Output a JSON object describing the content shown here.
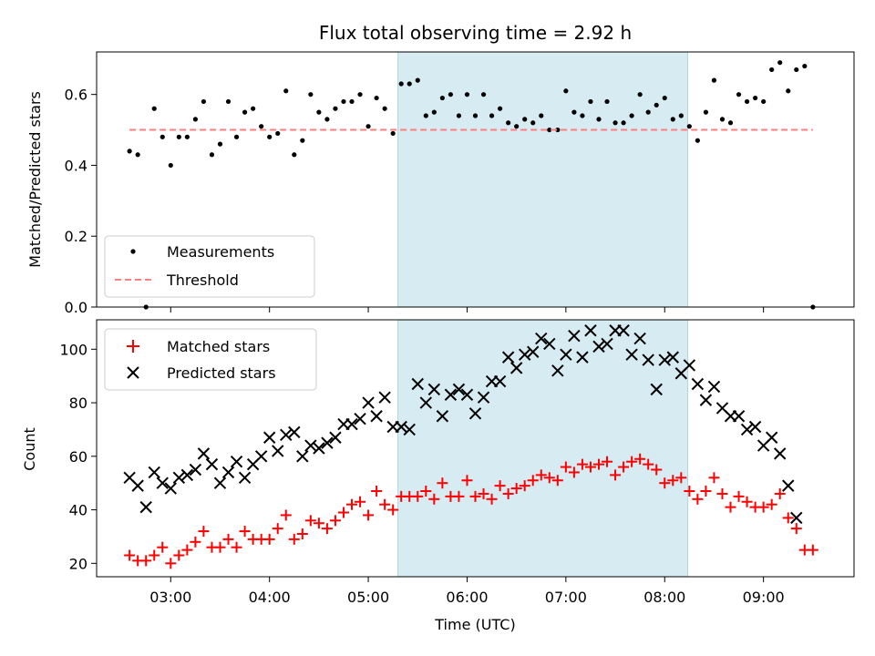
{
  "chart_data": [
    {
      "type": "scatter",
      "title": "Flux total observing time = 2.92 h",
      "ylabel": "Matched/Predicted stars",
      "xlabel": "",
      "xlim": [
        "02:15",
        "09:55"
      ],
      "ylim": [
        0,
        0.72
      ],
      "yticks": [
        "0.0",
        "0.2",
        "0.4",
        "0.6"
      ],
      "ytick_values": [
        0,
        0.2,
        0.4,
        0.6
      ],
      "highlight_span": [
        "05:18",
        "08:14"
      ],
      "legend_position": "lower-left",
      "series": [
        {
          "name": "Measurements",
          "kind": "points",
          "color": "#000000",
          "points": [
            [
              "02:35",
              0.44
            ],
            [
              "02:40",
              0.43
            ],
            [
              "02:45",
              0
            ],
            [
              "02:50",
              0.56
            ],
            [
              "02:55",
              0.48
            ],
            [
              "03:00",
              0.4
            ],
            [
              "03:05",
              0.48
            ],
            [
              "03:10",
              0.48
            ],
            [
              "03:15",
              0.53
            ],
            [
              "03:20",
              0.58
            ],
            [
              "03:25",
              0.43
            ],
            [
              "03:30",
              0.46
            ],
            [
              "03:35",
              0.58
            ],
            [
              "03:40",
              0.48
            ],
            [
              "03:45",
              0.55
            ],
            [
              "03:50",
              0.56
            ],
            [
              "03:55",
              0.51
            ],
            [
              "04:00",
              0.48
            ],
            [
              "04:05",
              0.49
            ],
            [
              "04:10",
              0.61
            ],
            [
              "04:15",
              0.43
            ],
            [
              "04:20",
              0.47
            ],
            [
              "04:25",
              0.6
            ],
            [
              "04:30",
              0.55
            ],
            [
              "04:35",
              0.53
            ],
            [
              "04:40",
              0.56
            ],
            [
              "04:45",
              0.58
            ],
            [
              "04:50",
              0.58
            ],
            [
              "04:55",
              0.6
            ],
            [
              "05:00",
              0.51
            ],
            [
              "05:05",
              0.59
            ],
            [
              "05:10",
              0.56
            ],
            [
              "05:15",
              0.49
            ],
            [
              "05:20",
              0.63
            ],
            [
              "05:25",
              0.63
            ],
            [
              "05:30",
              0.64
            ],
            [
              "05:35",
              0.54
            ],
            [
              "05:40",
              0.55
            ],
            [
              "05:45",
              0.59
            ],
            [
              "05:50",
              0.6
            ],
            [
              "05:55",
              0.54
            ],
            [
              "06:00",
              0.6
            ],
            [
              "06:05",
              0.54
            ],
            [
              "06:10",
              0.6
            ],
            [
              "06:15",
              0.54
            ],
            [
              "06:20",
              0.56
            ],
            [
              "06:25",
              0.52
            ],
            [
              "06:30",
              0.51
            ],
            [
              "06:35",
              0.53
            ],
            [
              "06:40",
              0.52
            ],
            [
              "06:45",
              0.54
            ],
            [
              "06:50",
              0.5
            ],
            [
              "06:55",
              0.5
            ],
            [
              "07:00",
              0.61
            ],
            [
              "07:05",
              0.55
            ],
            [
              "07:10",
              0.54
            ],
            [
              "07:15",
              0.58
            ],
            [
              "07:20",
              0.53
            ],
            [
              "07:25",
              0.58
            ],
            [
              "07:30",
              0.52
            ],
            [
              "07:35",
              0.52
            ],
            [
              "07:40",
              0.54
            ],
            [
              "07:45",
              0.6
            ],
            [
              "07:50",
              0.55
            ],
            [
              "07:55",
              0.57
            ],
            [
              "08:00",
              0.59
            ],
            [
              "08:05",
              0.53
            ],
            [
              "08:10",
              0.54
            ],
            [
              "08:15",
              0.51
            ],
            [
              "08:20",
              0.47
            ],
            [
              "08:25",
              0.55
            ],
            [
              "08:30",
              0.64
            ],
            [
              "08:35",
              0.53
            ],
            [
              "08:40",
              0.52
            ],
            [
              "08:45",
              0.6
            ],
            [
              "08:50",
              0.58
            ],
            [
              "08:55",
              0.59
            ],
            [
              "09:00",
              0.58
            ],
            [
              "09:05",
              0.67
            ],
            [
              "09:10",
              0.69
            ],
            [
              "09:15",
              0.61
            ],
            [
              "09:20",
              0.67
            ],
            [
              "09:25",
              0.68
            ],
            [
              "09:30",
              0
            ]
          ]
        },
        {
          "name": "Threshold",
          "kind": "dashed-line",
          "color": "#ff7f7f",
          "points": [
            [
              "02:35",
              0.5
            ],
            [
              "09:30",
              0.5
            ]
          ]
        }
      ]
    },
    {
      "type": "scatter",
      "title": "",
      "ylabel": "Count",
      "xlabel": "Time (UTC)",
      "xlim": [
        "02:15",
        "09:55"
      ],
      "ylim": [
        15,
        111
      ],
      "yticks": [
        "20",
        "40",
        "60",
        "80",
        "100"
      ],
      "ytick_values": [
        20,
        40,
        60,
        80,
        100
      ],
      "xticks": [
        "03:00",
        "04:00",
        "05:00",
        "06:00",
        "07:00",
        "08:00",
        "09:00"
      ],
      "highlight_span": [
        "05:18",
        "08:14"
      ],
      "legend_position": "upper-left",
      "series": [
        {
          "name": "Matched stars",
          "kind": "plus",
          "color": "#ff0000",
          "points": [
            [
              "02:35",
              23
            ],
            [
              "02:40",
              21
            ],
            [
              "02:45",
              21
            ],
            [
              "02:50",
              23
            ],
            [
              "02:55",
              26
            ],
            [
              "03:00",
              20
            ],
            [
              "03:05",
              23
            ],
            [
              "03:10",
              25
            ],
            [
              "03:15",
              28
            ],
            [
              "03:20",
              32
            ],
            [
              "03:25",
              26
            ],
            [
              "03:30",
              26
            ],
            [
              "03:35",
              29
            ],
            [
              "03:40",
              26
            ],
            [
              "03:45",
              32
            ],
            [
              "03:50",
              29
            ],
            [
              "03:55",
              29
            ],
            [
              "04:00",
              29
            ],
            [
              "04:05",
              33
            ],
            [
              "04:10",
              38
            ],
            [
              "04:15",
              29
            ],
            [
              "04:20",
              31
            ],
            [
              "04:25",
              36
            ],
            [
              "04:30",
              35
            ],
            [
              "04:35",
              33
            ],
            [
              "04:40",
              36
            ],
            [
              "04:45",
              39
            ],
            [
              "04:50",
              42
            ],
            [
              "04:55",
              43
            ],
            [
              "05:00",
              38
            ],
            [
              "05:05",
              47
            ],
            [
              "05:10",
              42
            ],
            [
              "05:15",
              40
            ],
            [
              "05:20",
              45
            ],
            [
              "05:25",
              45
            ],
            [
              "05:30",
              45
            ],
            [
              "05:35",
              47
            ],
            [
              "05:40",
              44
            ],
            [
              "05:45",
              50
            ],
            [
              "05:50",
              45
            ],
            [
              "05:55",
              45
            ],
            [
              "06:00",
              51
            ],
            [
              "06:05",
              45
            ],
            [
              "06:10",
              46
            ],
            [
              "06:15",
              44
            ],
            [
              "06:20",
              49
            ],
            [
              "06:25",
              46
            ],
            [
              "06:30",
              48
            ],
            [
              "06:35",
              49
            ],
            [
              "06:40",
              51
            ],
            [
              "06:45",
              53
            ],
            [
              "06:50",
              52
            ],
            [
              "06:55",
              51
            ],
            [
              "07:00",
              56
            ],
            [
              "07:05",
              54
            ],
            [
              "07:10",
              57
            ],
            [
              "07:15",
              56
            ],
            [
              "07:20",
              57
            ],
            [
              "07:25",
              58
            ],
            [
              "07:30",
              53
            ],
            [
              "07:35",
              56
            ],
            [
              "07:40",
              58
            ],
            [
              "07:45",
              59
            ],
            [
              "07:50",
              57
            ],
            [
              "07:55",
              55
            ],
            [
              "08:00",
              50
            ],
            [
              "08:05",
              51
            ],
            [
              "08:10",
              52
            ],
            [
              "08:15",
              47
            ],
            [
              "08:20",
              44
            ],
            [
              "08:25",
              47
            ],
            [
              "08:30",
              52
            ],
            [
              "08:35",
              46
            ],
            [
              "08:40",
              41
            ],
            [
              "08:45",
              45
            ],
            [
              "08:50",
              43
            ],
            [
              "08:55",
              41
            ],
            [
              "09:00",
              41
            ],
            [
              "09:05",
              42
            ],
            [
              "09:10",
              46
            ],
            [
              "09:15",
              37
            ],
            [
              "09:20",
              33
            ],
            [
              "09:25",
              25
            ],
            [
              "09:30",
              25
            ]
          ]
        },
        {
          "name": "Predicted stars",
          "kind": "x",
          "color": "#000000",
          "points": [
            [
              "02:35",
              52
            ],
            [
              "02:40",
              49
            ],
            [
              "02:45",
              41
            ],
            [
              "02:50",
              54
            ],
            [
              "02:55",
              50
            ],
            [
              "03:00",
              48
            ],
            [
              "03:05",
              52
            ],
            [
              "03:10",
              53
            ],
            [
              "03:15",
              55
            ],
            [
              "03:20",
              61
            ],
            [
              "03:25",
              57
            ],
            [
              "03:30",
              50
            ],
            [
              "03:35",
              54
            ],
            [
              "03:40",
              58
            ],
            [
              "03:45",
              52
            ],
            [
              "03:50",
              57
            ],
            [
              "03:55",
              60
            ],
            [
              "04:00",
              67
            ],
            [
              "04:05",
              62
            ],
            [
              "04:10",
              68
            ],
            [
              "04:15",
              69
            ],
            [
              "04:20",
              60
            ],
            [
              "04:25",
              64
            ],
            [
              "04:30",
              63
            ],
            [
              "04:35",
              65
            ],
            [
              "04:40",
              67
            ],
            [
              "04:45",
              72
            ],
            [
              "04:50",
              72
            ],
            [
              "04:55",
              74
            ],
            [
              "05:00",
              80
            ],
            [
              "05:05",
              75
            ],
            [
              "05:10",
              82
            ],
            [
              "05:15",
              71
            ],
            [
              "05:20",
              71
            ],
            [
              "05:25",
              70
            ],
            [
              "05:30",
              87
            ],
            [
              "05:35",
              80
            ],
            [
              "05:40",
              85
            ],
            [
              "05:45",
              75
            ],
            [
              "05:50",
              83
            ],
            [
              "05:55",
              85
            ],
            [
              "06:00",
              83
            ],
            [
              "06:05",
              76
            ],
            [
              "06:10",
              82
            ],
            [
              "06:15",
              88
            ],
            [
              "06:20",
              88
            ],
            [
              "06:25",
              97
            ],
            [
              "06:30",
              93
            ],
            [
              "06:35",
              98
            ],
            [
              "06:40",
              99
            ],
            [
              "06:45",
              104
            ],
            [
              "06:50",
              102
            ],
            [
              "06:55",
              92
            ],
            [
              "07:00",
              98
            ],
            [
              "07:05",
              105
            ],
            [
              "07:10",
              97
            ],
            [
              "07:15",
              107
            ],
            [
              "07:20",
              101
            ],
            [
              "07:25",
              102
            ],
            [
              "07:30",
              107
            ],
            [
              "07:35",
              107
            ],
            [
              "07:40",
              98
            ],
            [
              "07:45",
              104
            ],
            [
              "07:50",
              96
            ],
            [
              "07:55",
              85
            ],
            [
              "08:00",
              96
            ],
            [
              "08:05",
              97
            ],
            [
              "08:10",
              91
            ],
            [
              "08:15",
              94
            ],
            [
              "08:20",
              87
            ],
            [
              "08:25",
              81
            ],
            [
              "08:30",
              86
            ],
            [
              "08:35",
              78
            ],
            [
              "08:40",
              75
            ],
            [
              "08:45",
              75
            ],
            [
              "08:50",
              70
            ],
            [
              "08:55",
              71
            ],
            [
              "09:00",
              64
            ],
            [
              "09:05",
              67
            ],
            [
              "09:10",
              61
            ],
            [
              "09:15",
              49
            ],
            [
              "09:20",
              37
            ]
          ]
        }
      ]
    }
  ]
}
